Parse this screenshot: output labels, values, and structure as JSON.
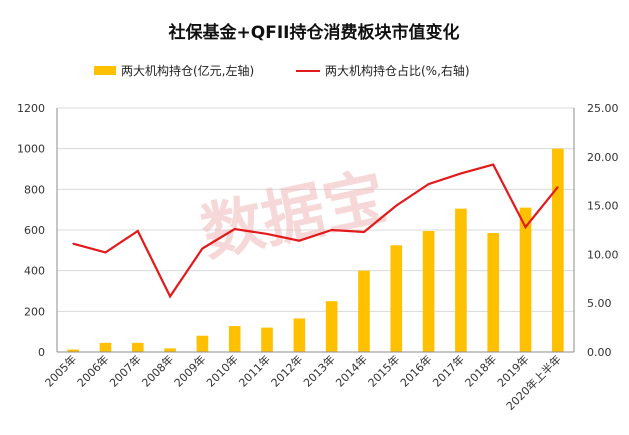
{
  "chart_data": {
    "type": "bar+line",
    "title": "社保基金+QFII持仓消费板块市值变化",
    "watermark": "数据宝",
    "categories": [
      "2005年",
      "2006年",
      "2007年",
      "2008年",
      "2009年",
      "2010年",
      "2011年",
      "2012年",
      "2013年",
      "2014年",
      "2015年",
      "2016年",
      "2017年",
      "2018年",
      "2019年",
      "2020年上半年"
    ],
    "series": [
      {
        "name": "两大机构持仓(亿元,左轴)",
        "type": "bar",
        "axis": "left",
        "color": "#FFC000",
        "values": [
          12,
          45,
          45,
          18,
          80,
          128,
          120,
          165,
          250,
          400,
          525,
          595,
          705,
          585,
          710,
          1000
        ]
      },
      {
        "name": "两大机构持仓占比(%,右轴)",
        "type": "line",
        "axis": "right",
        "color": "#E31A1C",
        "values": [
          11.1,
          10.2,
          12.4,
          5.7,
          10.6,
          12.6,
          12.1,
          11.4,
          12.5,
          12.3,
          15.0,
          17.2,
          18.3,
          19.2,
          12.8,
          16.9
        ]
      }
    ],
    "y_left": {
      "ylim": [
        0,
        1200
      ],
      "ticks": [
        "0",
        "200",
        "400",
        "600",
        "800",
        "1000",
        "1200"
      ]
    },
    "y_right": {
      "ylim": [
        0,
        25
      ],
      "ticks": [
        "0.00",
        "5.00",
        "10.00",
        "15.00",
        "20.00",
        "25.00"
      ]
    },
    "grid": true,
    "legend_position": "top"
  }
}
